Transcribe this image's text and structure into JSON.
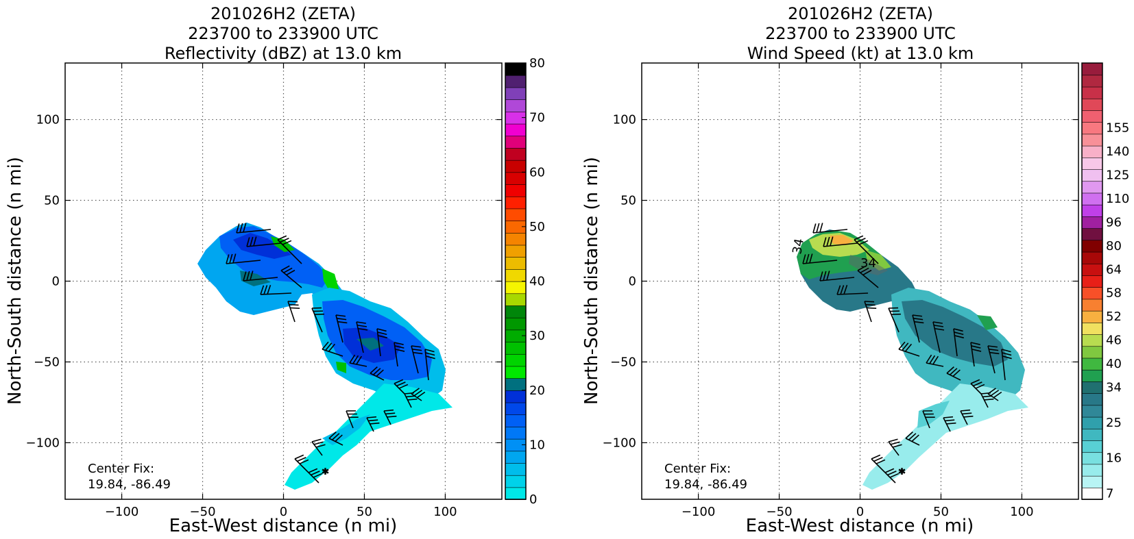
{
  "chart_data": [
    {
      "type": "heatmap",
      "title": [
        "201026H2 (ZETA)",
        "223700 to 233900 UTC",
        "Reflectivity (dBZ) at 13.0 km"
      ],
      "xlabel": "East-West distance (n mi)",
      "ylabel": "North-South distance (n mi)",
      "xlim": [
        -135,
        135
      ],
      "ylim": [
        -135,
        135
      ],
      "xticks": [
        -100,
        -50,
        0,
        50,
        100
      ],
      "yticks": [
        -100,
        -50,
        0,
        50,
        100
      ],
      "xtick_labels": [
        "−100",
        "−50",
        "0",
        "50",
        "100"
      ],
      "ytick_labels": [
        "−100",
        "−50",
        "0",
        "50",
        "100"
      ],
      "grid": true,
      "annotation": [
        "Center Fix:",
        "19.84, -86.49"
      ],
      "colorbar": {
        "min": 0,
        "max": 80,
        "step": 2.5,
        "tick_labels": [
          "0",
          "10",
          "20",
          "30",
          "40",
          "50",
          "60",
          "70",
          "80"
        ],
        "colors": [
          "#00e8e8",
          "#00d2ea",
          "#00bdeb",
          "#00a6f0",
          "#0090f5",
          "#0078f7",
          "#0060f5",
          "#0048ea",
          "#0030d8",
          "#00707f",
          "#00e800",
          "#00d400",
          "#00c000",
          "#00ac00",
          "#009800",
          "#00860a",
          "#a8d800",
          "#f5f500",
          "#f0d800",
          "#ecbc00",
          "#f0a000",
          "#f58400",
          "#fa6800",
          "#ff4c00",
          "#ff2000",
          "#f00000",
          "#d80000",
          "#c80000",
          "#c00020",
          "#e0007a",
          "#f000d0",
          "#d830e8",
          "#b048d8",
          "#8040b8",
          "#502070",
          "#000000"
        ]
      }
    },
    {
      "type": "heatmap",
      "title": [
        "201026H2 (ZETA)",
        "223700 to 233900 UTC",
        "Wind Speed (kt) at 13.0 km"
      ],
      "xlabel": "East-West distance (n mi)",
      "ylabel": "North-South distance (n mi)",
      "xlim": [
        -135,
        135
      ],
      "ylim": [
        -135,
        135
      ],
      "xticks": [
        -100,
        -50,
        0,
        50,
        100
      ],
      "yticks": [
        -100,
        -50,
        0,
        50,
        100
      ],
      "xtick_labels": [
        "−100",
        "−50",
        "0",
        "50",
        "100"
      ],
      "ytick_labels": [
        "−100",
        "−50",
        "0",
        "50",
        "100"
      ],
      "grid": true,
      "contour_labels": [
        "34",
        "34"
      ],
      "annotation": [
        "Center Fix:",
        "19.84, -86.49"
      ],
      "colorbar": {
        "tick_labels": [
          "7",
          "16",
          "25",
          "34",
          "40",
          "46",
          "52",
          "58",
          "64",
          "80",
          "96",
          "110",
          "125",
          "140",
          "155"
        ],
        "tick_bin_index": [
          0,
          3,
          6,
          9,
          11,
          13,
          15,
          17,
          19,
          21,
          23,
          25,
          27,
          29,
          31
        ],
        "colors": [
          "#ffffff",
          "#b8f4f4",
          "#98ecec",
          "#78e0e0",
          "#58d0d4",
          "#40b8c0",
          "#30a0ac",
          "#308898",
          "#287888",
          "#207070",
          "#20a050",
          "#40b840",
          "#80c840",
          "#b8dc50",
          "#f0e060",
          "#f8b040",
          "#f88030",
          "#f85028",
          "#e82018",
          "#c81010",
          "#a80808",
          "#800000",
          "#701040",
          "#a020a0",
          "#c040e8",
          "#d070f0",
          "#e098f0",
          "#f0c0f0",
          "#f8c8e8",
          "#f8b0c8",
          "#f89098",
          "#f87880",
          "#f06070",
          "#e04858",
          "#c83048",
          "#b02840",
          "#981c3c"
        ]
      }
    }
  ]
}
